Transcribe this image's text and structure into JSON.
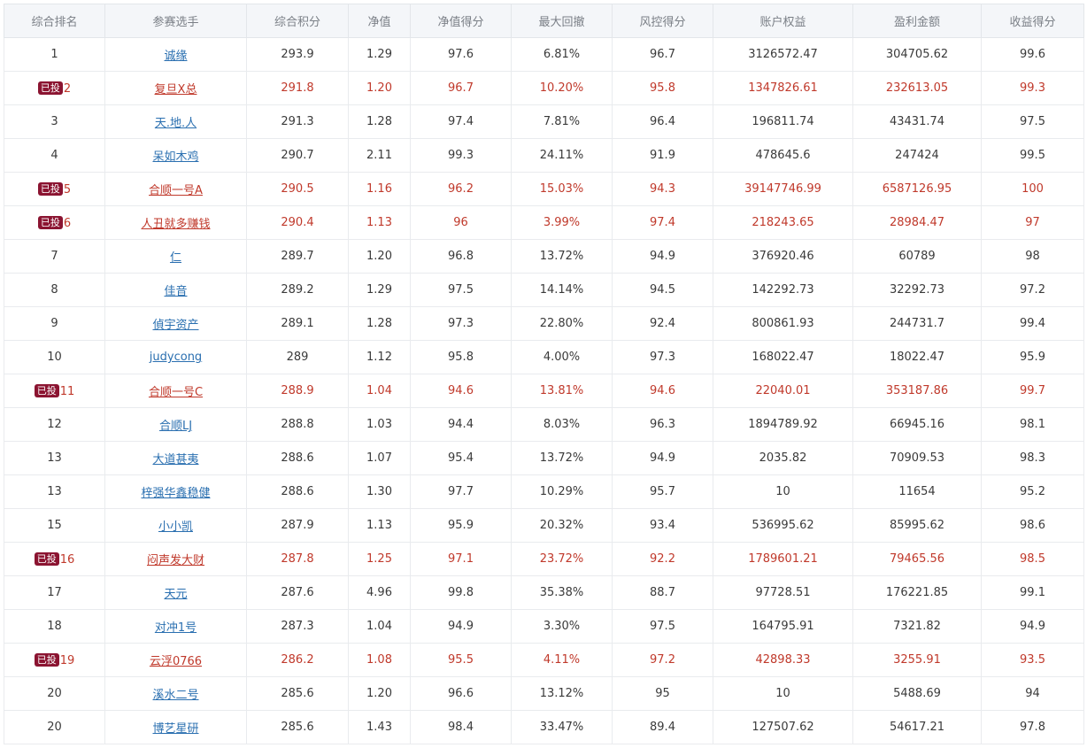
{
  "headers": [
    "综合排名",
    "参赛选手",
    "综合积分",
    "净值",
    "净值得分",
    "最大回撤",
    "风控得分",
    "账户权益",
    "盈利金额",
    "收益得分"
  ],
  "badge_text": "已投",
  "rows": [
    {
      "rank": "1",
      "name": "诚缘",
      "score": "293.9",
      "nav": "1.29",
      "nav_score": "97.6",
      "drawdown": "6.81%",
      "risk_score": "96.7",
      "equity": "3126572.47",
      "profit": "304705.62",
      "return_score": "99.6",
      "invested": false
    },
    {
      "rank": "2",
      "name": "复旦X总",
      "score": "291.8",
      "nav": "1.20",
      "nav_score": "96.7",
      "drawdown": "10.20%",
      "risk_score": "95.8",
      "equity": "1347826.61",
      "profit": "232613.05",
      "return_score": "99.3",
      "invested": true
    },
    {
      "rank": "3",
      "name": "天.地.人",
      "score": "291.3",
      "nav": "1.28",
      "nav_score": "97.4",
      "drawdown": "7.81%",
      "risk_score": "96.4",
      "equity": "196811.74",
      "profit": "43431.74",
      "return_score": "97.5",
      "invested": false
    },
    {
      "rank": "4",
      "name": "呆如木鸡",
      "score": "290.7",
      "nav": "2.11",
      "nav_score": "99.3",
      "drawdown": "24.11%",
      "risk_score": "91.9",
      "equity": "478645.6",
      "profit": "247424",
      "return_score": "99.5",
      "invested": false
    },
    {
      "rank": "5",
      "name": "合顺一号A",
      "score": "290.5",
      "nav": "1.16",
      "nav_score": "96.2",
      "drawdown": "15.03%",
      "risk_score": "94.3",
      "equity": "39147746.99",
      "profit": "6587126.95",
      "return_score": "100",
      "invested": true
    },
    {
      "rank": "6",
      "name": "人丑就多赚钱",
      "score": "290.4",
      "nav": "1.13",
      "nav_score": "96",
      "drawdown": "3.99%",
      "risk_score": "97.4",
      "equity": "218243.65",
      "profit": "28984.47",
      "return_score": "97",
      "invested": true
    },
    {
      "rank": "7",
      "name": "仁",
      "score": "289.7",
      "nav": "1.20",
      "nav_score": "96.8",
      "drawdown": "13.72%",
      "risk_score": "94.9",
      "equity": "376920.46",
      "profit": "60789",
      "return_score": "98",
      "invested": false
    },
    {
      "rank": "8",
      "name": "佳音",
      "score": "289.2",
      "nav": "1.29",
      "nav_score": "97.5",
      "drawdown": "14.14%",
      "risk_score": "94.5",
      "equity": "142292.73",
      "profit": "32292.73",
      "return_score": "97.2",
      "invested": false
    },
    {
      "rank": "9",
      "name": "偵宇资产",
      "score": "289.1",
      "nav": "1.28",
      "nav_score": "97.3",
      "drawdown": "22.80%",
      "risk_score": "92.4",
      "equity": "800861.93",
      "profit": "244731.7",
      "return_score": "99.4",
      "invested": false
    },
    {
      "rank": "10",
      "name": "judycong",
      "score": "289",
      "nav": "1.12",
      "nav_score": "95.8",
      "drawdown": "4.00%",
      "risk_score": "97.3",
      "equity": "168022.47",
      "profit": "18022.47",
      "return_score": "95.9",
      "invested": false
    },
    {
      "rank": "11",
      "name": "合顺一号C",
      "score": "288.9",
      "nav": "1.04",
      "nav_score": "94.6",
      "drawdown": "13.81%",
      "risk_score": "94.6",
      "equity": "22040.01",
      "profit": "353187.86",
      "return_score": "99.7",
      "invested": true
    },
    {
      "rank": "12",
      "name": "合顺LJ",
      "score": "288.8",
      "nav": "1.03",
      "nav_score": "94.4",
      "drawdown": "8.03%",
      "risk_score": "96.3",
      "equity": "1894789.92",
      "profit": "66945.16",
      "return_score": "98.1",
      "invested": false
    },
    {
      "rank": "13",
      "name": "大道甚夷",
      "score": "288.6",
      "nav": "1.07",
      "nav_score": "95.4",
      "drawdown": "13.72%",
      "risk_score": "94.9",
      "equity": "2035.82",
      "profit": "70909.53",
      "return_score": "98.3",
      "invested": false
    },
    {
      "rank": "13",
      "name": "梓强华鑫稳健",
      "score": "288.6",
      "nav": "1.30",
      "nav_score": "97.7",
      "drawdown": "10.29%",
      "risk_score": "95.7",
      "equity": "10",
      "profit": "11654",
      "return_score": "95.2",
      "invested": false
    },
    {
      "rank": "15",
      "name": "小小凯",
      "score": "287.9",
      "nav": "1.13",
      "nav_score": "95.9",
      "drawdown": "20.32%",
      "risk_score": "93.4",
      "equity": "536995.62",
      "profit": "85995.62",
      "return_score": "98.6",
      "invested": false
    },
    {
      "rank": "16",
      "name": "闷声发大财",
      "score": "287.8",
      "nav": "1.25",
      "nav_score": "97.1",
      "drawdown": "23.72%",
      "risk_score": "92.2",
      "equity": "1789601.21",
      "profit": "79465.56",
      "return_score": "98.5",
      "invested": true
    },
    {
      "rank": "17",
      "name": "天元",
      "score": "287.6",
      "nav": "4.96",
      "nav_score": "99.8",
      "drawdown": "35.38%",
      "risk_score": "88.7",
      "equity": "97728.51",
      "profit": "176221.85",
      "return_score": "99.1",
      "invested": false
    },
    {
      "rank": "18",
      "name": "对冲1号",
      "score": "287.3",
      "nav": "1.04",
      "nav_score": "94.9",
      "drawdown": "3.30%",
      "risk_score": "97.5",
      "equity": "164795.91",
      "profit": "7321.82",
      "return_score": "94.9",
      "invested": false
    },
    {
      "rank": "19",
      "name": "云浮0766",
      "score": "286.2",
      "nav": "1.08",
      "nav_score": "95.5",
      "drawdown": "4.11%",
      "risk_score": "97.2",
      "equity": "42898.33",
      "profit": "3255.91",
      "return_score": "93.5",
      "invested": true
    },
    {
      "rank": "20",
      "name": "溪水二号",
      "score": "285.6",
      "nav": "1.20",
      "nav_score": "96.6",
      "drawdown": "13.12%",
      "risk_score": "95",
      "equity": "10",
      "profit": "5488.69",
      "return_score": "94",
      "invested": false
    },
    {
      "rank": "20",
      "name": "博艺星研",
      "score": "285.6",
      "nav": "1.43",
      "nav_score": "98.4",
      "drawdown": "33.47%",
      "risk_score": "89.4",
      "equity": "127507.62",
      "profit": "54617.21",
      "return_score": "97.8",
      "invested": false
    }
  ],
  "colors": {
    "invested_text": "#c0392b",
    "link": "#2a6fb0",
    "badge_bg": "#8b1431",
    "header_bg": "#f4f6f9"
  }
}
